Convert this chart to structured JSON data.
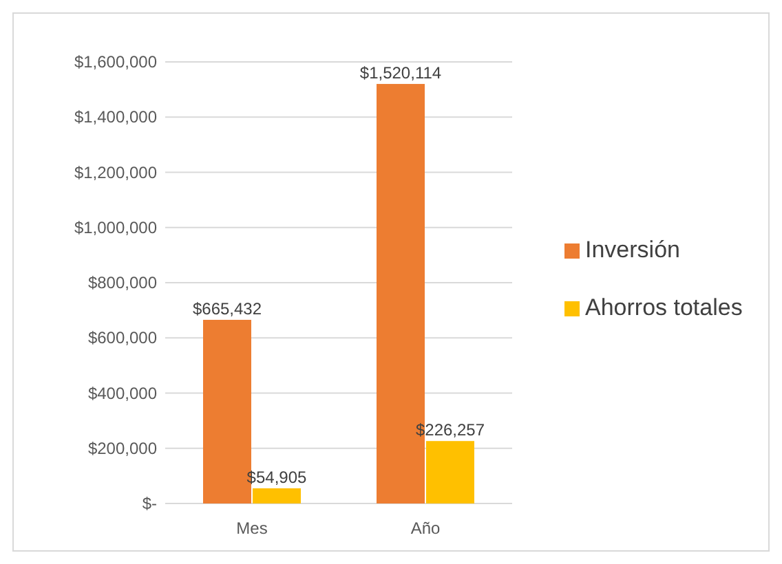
{
  "chart_data": {
    "type": "bar",
    "categories": [
      "Mes",
      "Año"
    ],
    "series": [
      {
        "name": "Inversión",
        "color": "#ed7d31",
        "values": [
          665432,
          1520114
        ],
        "value_labels": [
          "$665,432",
          "$1,520,114"
        ]
      },
      {
        "name": "Ahorros totales",
        "color": "#ffc000",
        "values": [
          54905,
          226257
        ],
        "value_labels": [
          "$54,905",
          "$226,257"
        ]
      }
    ],
    "ylim": [
      0,
      1600000
    ],
    "yticks": [
      {
        "value": 0,
        "label": "$-"
      },
      {
        "value": 200000,
        "label": "$200,000"
      },
      {
        "value": 400000,
        "label": "$400,000"
      },
      {
        "value": 600000,
        "label": "$600,000"
      },
      {
        "value": 800000,
        "label": "$800,000"
      },
      {
        "value": 1000000,
        "label": "$1,000,000"
      },
      {
        "value": 1200000,
        "label": "$1,200,000"
      },
      {
        "value": 1400000,
        "label": "$1,400,000"
      },
      {
        "value": 1600000,
        "label": "$1,600,000"
      }
    ],
    "grid": "y",
    "legend": "right"
  }
}
